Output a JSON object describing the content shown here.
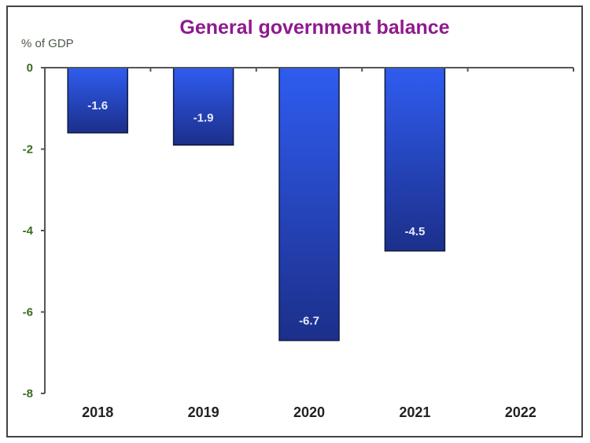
{
  "chart_data": {
    "type": "bar",
    "title": "General government balance",
    "ylabel": "% of GDP",
    "xlabel": "",
    "categories": [
      "2018",
      "2019",
      "2020",
      "2021",
      "2022"
    ],
    "values": [
      -1.6,
      -1.9,
      -6.7,
      -4.5,
      null
    ],
    "data_labels": [
      "-1.6",
      "-1.9",
      "-6.7",
      "-4.5",
      ""
    ],
    "ylim": [
      -8,
      0
    ],
    "yticks": [
      0,
      -2,
      -4,
      -6,
      -8
    ],
    "ytick_labels": [
      "0",
      "-2",
      "-4",
      "-6",
      "-8"
    ],
    "grid": false,
    "legend": "none",
    "colors": {
      "title": "#8e1a8e",
      "bar_top": "#2f5cf0",
      "bar_bottom": "#1c2f8a",
      "ytick": "#3d6b1f",
      "axis": "#555555"
    }
  }
}
